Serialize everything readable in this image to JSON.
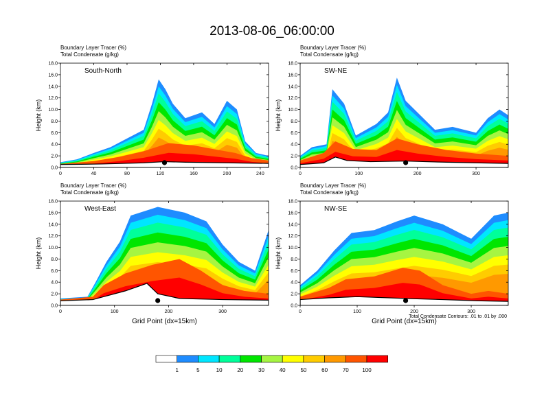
{
  "page_title": "2013-08-06_06:00:00",
  "bottom_note": "Total Condensate Contours: .01 to .01 by .000",
  "colorbar": {
    "colors": [
      "#ffffff",
      "#1e8cff",
      "#00e6ff",
      "#00ff9a",
      "#00e600",
      "#a6f542",
      "#ffff00",
      "#ffcc00",
      "#ff9900",
      "#ff5500",
      "#ff0000"
    ],
    "labels": [
      "1",
      "5",
      "10",
      "20",
      "30",
      "40",
      "50",
      "60",
      "70",
      "100"
    ]
  },
  "chart_data": [
    {
      "type": "heatmap",
      "panel_label": "South-North",
      "title_lines": [
        "Boundary Layer Tracer   (%)",
        "Total Condensate   (g/kg)"
      ],
      "ylabel": "Height (km)",
      "xlabel": "",
      "xlim": [
        0,
        250
      ],
      "xticks": [
        0,
        40,
        80,
        120,
        160,
        200,
        240
      ],
      "ylim": [
        0,
        18
      ],
      "yticks": [
        "0.0",
        "2.0",
        "4.0",
        "6.0",
        "8.0",
        "10.0",
        "12.0",
        "14.0",
        "16.0",
        "18.0"
      ],
      "marker_x": 125,
      "terrain": [
        [
          0,
          0.5
        ],
        [
          50,
          0.6
        ],
        [
          100,
          0.8
        ],
        [
          125,
          1.0
        ],
        [
          150,
          0.9
        ],
        [
          200,
          0.8
        ],
        [
          250,
          0.7
        ]
      ],
      "tracer_top": [
        [
          0,
          0.9
        ],
        [
          20,
          1.4
        ],
        [
          40,
          2.5
        ],
        [
          60,
          3.5
        ],
        [
          80,
          5.0
        ],
        [
          100,
          6.5
        ],
        [
          110,
          11
        ],
        [
          118,
          15.2
        ],
        [
          126,
          13.5
        ],
        [
          135,
          11
        ],
        [
          150,
          8.5
        ],
        [
          170,
          9.5
        ],
        [
          185,
          7.5
        ],
        [
          200,
          11.5
        ],
        [
          212,
          10
        ],
        [
          222,
          4.5
        ],
        [
          235,
          2.5
        ],
        [
          250,
          2.0
        ]
      ],
      "red_top": [
        [
          0,
          0.6
        ],
        [
          40,
          1.1
        ],
        [
          70,
          1.8
        ],
        [
          100,
          2.8
        ],
        [
          130,
          4.2
        ],
        [
          160,
          3.8
        ],
        [
          190,
          3.0
        ],
        [
          210,
          2.5
        ],
        [
          230,
          1.6
        ],
        [
          250,
          1.2
        ]
      ]
    },
    {
      "type": "heatmap",
      "panel_label": "SW-NE",
      "title_lines": [
        "Boundary Layer Tracer   (%)",
        "Total Condensate   (g/kg)"
      ],
      "ylabel": "Height (km)",
      "xlabel": "",
      "xlim": [
        0,
        355
      ],
      "xticks": [
        0,
        100,
        200,
        300
      ],
      "ylim": [
        0,
        18
      ],
      "yticks": [
        "0.0",
        "2.0",
        "4.0",
        "6.0",
        "8.0",
        "10.0",
        "12.0",
        "14.0",
        "16.0",
        "18.0"
      ],
      "marker_x": 180,
      "terrain": [
        [
          0,
          0.5
        ],
        [
          40,
          0.8
        ],
        [
          60,
          1.8
        ],
        [
          80,
          1.2
        ],
        [
          120,
          1.0
        ],
        [
          180,
          1.1
        ],
        [
          250,
          0.9
        ],
        [
          300,
          0.8
        ],
        [
          355,
          0.7
        ]
      ],
      "tracer_top": [
        [
          0,
          2.0
        ],
        [
          20,
          3.5
        ],
        [
          45,
          4.0
        ],
        [
          55,
          13.5
        ],
        [
          75,
          11
        ],
        [
          95,
          5.5
        ],
        [
          130,
          7.5
        ],
        [
          150,
          9.5
        ],
        [
          165,
          15.5
        ],
        [
          180,
          11.5
        ],
        [
          200,
          9.5
        ],
        [
          230,
          6.5
        ],
        [
          260,
          7.0
        ],
        [
          300,
          6.0
        ],
        [
          320,
          8.5
        ],
        [
          340,
          10.0
        ],
        [
          355,
          9.0
        ]
      ],
      "red_top": [
        [
          0,
          1.2
        ],
        [
          40,
          2.5
        ],
        [
          60,
          4.5
        ],
        [
          90,
          3.2
        ],
        [
          130,
          3.0
        ],
        [
          165,
          5.0
        ],
        [
          200,
          4.0
        ],
        [
          250,
          3.0
        ],
        [
          300,
          2.4
        ],
        [
          355,
          2.0
        ]
      ]
    },
    {
      "type": "heatmap",
      "panel_label": "West-East",
      "title_lines": [
        "Boundary Layer Tracer   (%)",
        "Total Condensate   (g/kg)"
      ],
      "ylabel": "Height (km)",
      "xlabel": "Grid Point (dx=15km)",
      "xlim": [
        0,
        385
      ],
      "xticks": [
        0,
        100,
        200,
        300
      ],
      "ylim": [
        0,
        18
      ],
      "yticks": [
        "0.0",
        "2.0",
        "4.0",
        "6.0",
        "8.0",
        "10.0",
        "12.0",
        "14.0",
        "16.0",
        "18.0"
      ],
      "marker_x": 180,
      "terrain": [
        [
          0,
          0.8
        ],
        [
          60,
          1.0
        ],
        [
          80,
          1.5
        ],
        [
          120,
          2.5
        ],
        [
          160,
          3.8
        ],
        [
          180,
          2.0
        ],
        [
          220,
          1.2
        ],
        [
          300,
          1.0
        ],
        [
          385,
          0.9
        ]
      ],
      "tracer_top": [
        [
          0,
          1.2
        ],
        [
          50,
          1.5
        ],
        [
          65,
          4.0
        ],
        [
          85,
          7.5
        ],
        [
          110,
          11
        ],
        [
          130,
          15.5
        ],
        [
          180,
          17
        ],
        [
          230,
          16
        ],
        [
          270,
          14.5
        ],
        [
          300,
          10.5
        ],
        [
          330,
          7.5
        ],
        [
          360,
          6.0
        ],
        [
          385,
          13.0
        ]
      ],
      "red_top": [
        [
          0,
          1.0
        ],
        [
          60,
          1.5
        ],
        [
          80,
          3.5
        ],
        [
          120,
          5.5
        ],
        [
          170,
          7.0
        ],
        [
          220,
          8.0
        ],
        [
          260,
          6.0
        ],
        [
          300,
          3.5
        ],
        [
          340,
          2.5
        ],
        [
          385,
          2.0
        ]
      ]
    },
    {
      "type": "heatmap",
      "panel_label": "NW-SE",
      "title_lines": [
        "Boundary Layer Tracer   (%)",
        "Total Condensate   (g/kg)"
      ],
      "ylabel": "Height (km)",
      "xlabel": "Grid Point (dx=15km)",
      "xlim": [
        0,
        365
      ],
      "xticks": [
        0,
        100,
        200,
        300
      ],
      "ylim": [
        0,
        18
      ],
      "yticks": [
        "0.0",
        "2.0",
        "4.0",
        "6.0",
        "8.0",
        "10.0",
        "12.0",
        "14.0",
        "16.0",
        "18.0"
      ],
      "marker_x": 185,
      "terrain": [
        [
          0,
          1.0
        ],
        [
          50,
          1.3
        ],
        [
          100,
          1.5
        ],
        [
          185,
          1.2
        ],
        [
          250,
          1.0
        ],
        [
          310,
          0.8
        ],
        [
          365,
          0.7
        ]
      ],
      "tracer_top": [
        [
          0,
          3.5
        ],
        [
          30,
          6.0
        ],
        [
          60,
          9.5
        ],
        [
          90,
          12.5
        ],
        [
          130,
          13.0
        ],
        [
          170,
          14.5
        ],
        [
          200,
          15.5
        ],
        [
          250,
          14.0
        ],
        [
          280,
          12.5
        ],
        [
          300,
          11.5
        ],
        [
          320,
          13.5
        ],
        [
          340,
          15.5
        ],
        [
          365,
          16.0
        ]
      ],
      "red_top": [
        [
          0,
          1.5
        ],
        [
          50,
          3.0
        ],
        [
          80,
          4.5
        ],
        [
          130,
          5.0
        ],
        [
          180,
          6.5
        ],
        [
          210,
          6.0
        ],
        [
          250,
          3.5
        ],
        [
          300,
          2.0
        ],
        [
          330,
          2.5
        ],
        [
          365,
          2.0
        ]
      ]
    }
  ]
}
